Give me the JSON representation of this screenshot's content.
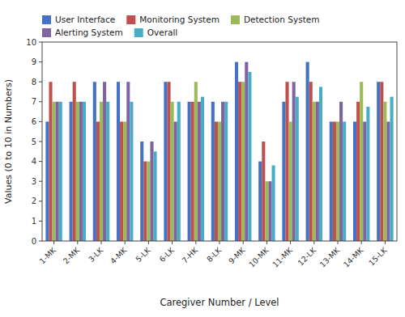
{
  "chart_data": {
    "type": "bar",
    "categories": [
      "1-MK",
      "2-MK",
      "3-LK",
      "4-MK",
      "5-LK",
      "6-LK",
      "7-HK",
      "8-LK",
      "9-MK",
      "10-MK",
      "11-MK",
      "12-LK",
      "13-MK",
      "14-MK",
      "15-LK"
    ],
    "series": [
      {
        "name": "User Interface",
        "color": "#4472c4",
        "values": [
          6,
          7,
          8,
          8,
          5,
          8,
          7,
          7,
          9,
          4,
          7,
          9,
          6,
          6,
          8
        ]
      },
      {
        "name": "Monitoring System",
        "color": "#c0504d",
        "values": [
          8,
          8,
          6,
          6,
          4,
          8,
          7,
          6,
          8,
          5,
          8,
          8,
          6,
          7,
          8
        ]
      },
      {
        "name": "Detection System",
        "color": "#9bbb59",
        "values": [
          7,
          7,
          7,
          6,
          4,
          7,
          8,
          6,
          8,
          3,
          6,
          7,
          6,
          8,
          7
        ]
      },
      {
        "name": "Alerting System",
        "color": "#8064a2",
        "values": [
          7,
          7,
          8,
          8,
          5,
          6,
          7,
          7,
          9,
          3,
          8,
          7,
          7,
          6,
          6
        ]
      },
      {
        "name": "Overall",
        "color": "#4bacc6",
        "values": [
          7,
          7,
          7,
          7,
          4.5,
          7,
          7.25,
          7,
          8.5,
          3.8,
          7.25,
          7.75,
          6,
          6.75,
          7.25
        ]
      }
    ],
    "xlabel": "Caregiver Number / Level",
    "ylabel": "Values (0 to 10 in Numbers)",
    "ylim": [
      0,
      10
    ],
    "yticks": [
      0,
      1,
      2,
      3,
      4,
      5,
      6,
      7,
      8,
      9,
      10
    ],
    "grid": false,
    "legend": "top"
  }
}
